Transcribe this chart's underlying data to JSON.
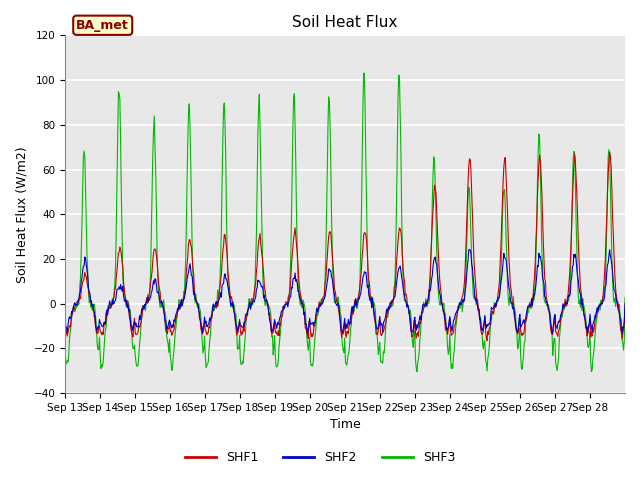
{
  "title": "Soil Heat Flux",
  "xlabel": "Time",
  "ylabel": "Soil Heat Flux (W/m2)",
  "ylim": [
    -40,
    120
  ],
  "facecolor": "#e8e8e8",
  "grid_color": "#ffffff",
  "label_annotation": "BA_met",
  "legend_labels": [
    "SHF1",
    "SHF2",
    "SHF3"
  ],
  "legend_colors": [
    "#cc0000",
    "#0000cc",
    "#00bb00"
  ],
  "x_tick_labels": [
    "Sep 13",
    "Sep 14",
    "Sep 15",
    "Sep 16",
    "Sep 17",
    "Sep 18",
    "Sep 19",
    "Sep 20",
    "Sep 21",
    "Sep 22",
    "Sep 23",
    "Sep 24",
    "Sep 25",
    "Sep 26",
    "Sep 27",
    "Sep 28"
  ],
  "title_fontsize": 11,
  "axis_fontsize": 9,
  "tick_fontsize": 7.5,
  "shf3_amps": [
    70,
    98,
    82,
    91,
    91,
    92,
    93,
    92,
    104,
    105,
    67,
    52,
    52,
    75,
    70,
    70
  ],
  "shf1_amps": [
    13,
    25,
    24,
    29,
    30,
    30,
    32,
    32,
    33,
    34,
    52,
    65,
    65,
    65,
    65,
    68
  ],
  "shf2_amps": [
    20,
    8,
    10,
    16,
    12,
    11,
    12,
    15,
    14,
    16,
    21,
    24,
    22,
    22,
    22,
    23
  ],
  "shf3_night_amp": -28,
  "shf1_night_amp": -14,
  "shf2_night_amp": -10
}
